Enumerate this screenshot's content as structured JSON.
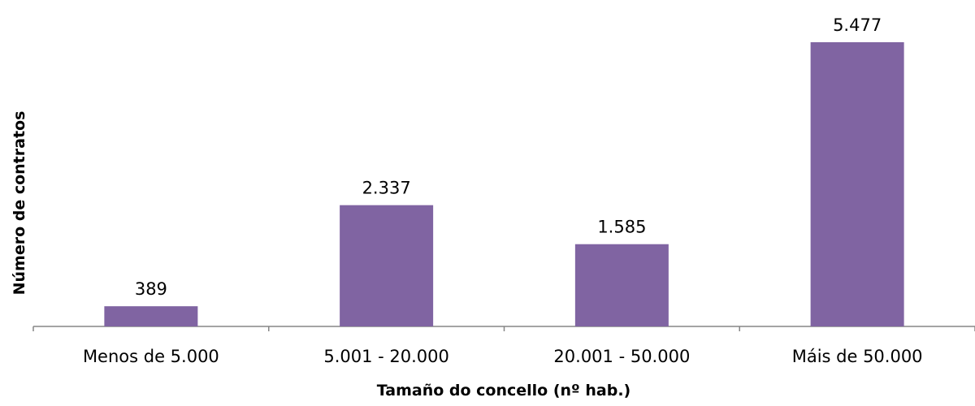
{
  "chart_data": {
    "type": "bar",
    "categories": [
      "Menos de 5.000",
      "5.001 - 20.000",
      "20.001 - 50.000",
      "Máis de 50.000"
    ],
    "values": [
      389,
      2337,
      1585,
      5477
    ],
    "data_labels": [
      "389",
      "2.337",
      "1.585",
      "5.477"
    ],
    "xlabel": "Tamaño do concello (nº hab.)",
    "ylabel": "Número de contratos",
    "ylim": [
      0,
      5477
    ],
    "grid": false,
    "legend": "none",
    "bar_color": "#8064A2"
  }
}
